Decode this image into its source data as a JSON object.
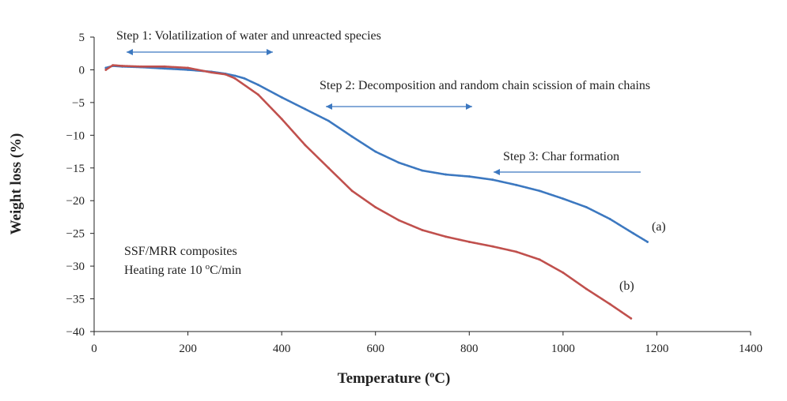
{
  "chart_data": {
    "type": "line",
    "title": "",
    "xlabel": "Temperature (",
    "xlabel_sup": "o",
    "xlabel_tail": "C)",
    "ylabel": "Weight loss (%)",
    "xlim": [
      0,
      1400
    ],
    "ylim": [
      -40,
      5
    ],
    "xticks": [
      "0",
      "200",
      "400",
      "600",
      "800",
      "1000",
      "1200",
      "1400"
    ],
    "yticks": [
      "5",
      "0",
      "−5",
      "−10",
      "−15",
      "−20",
      "−25",
      "−30",
      "−35",
      "−40"
    ],
    "xtick_values": [
      0,
      200,
      400,
      600,
      800,
      1000,
      1200,
      1400
    ],
    "ytick_values": [
      5,
      0,
      -5,
      -10,
      -15,
      -20,
      -25,
      -30,
      -35,
      -40
    ],
    "grid": false,
    "series": [
      {
        "name": "(a)",
        "color": "#3c78c0",
        "x": [
          25,
          40,
          60,
          100,
          150,
          200,
          250,
          280,
          300,
          320,
          350,
          400,
          450,
          500,
          550,
          600,
          650,
          700,
          750,
          800,
          850,
          900,
          950,
          1000,
          1050,
          1100,
          1150,
          1180
        ],
        "y": [
          0.3,
          0.6,
          0.5,
          0.4,
          0.2,
          0.0,
          -0.3,
          -0.6,
          -0.9,
          -1.3,
          -2.3,
          -4.2,
          -6.0,
          -7.8,
          -10.2,
          -12.5,
          -14.2,
          -15.4,
          -16.0,
          -16.3,
          -16.8,
          -17.6,
          -18.5,
          -19.7,
          -21.0,
          -22.8,
          -25.0,
          -26.3
        ]
      },
      {
        "name": "(b)",
        "color": "#c0504d",
        "x": [
          25,
          40,
          60,
          100,
          150,
          200,
          250,
          280,
          300,
          350,
          400,
          450,
          500,
          550,
          600,
          650,
          700,
          750,
          800,
          850,
          900,
          950,
          1000,
          1050,
          1100,
          1145
        ],
        "y": [
          0.0,
          0.7,
          0.6,
          0.5,
          0.5,
          0.3,
          -0.4,
          -0.7,
          -1.3,
          -3.8,
          -7.5,
          -11.5,
          -15.0,
          -18.5,
          -21.0,
          -23.0,
          -24.5,
          -25.5,
          -26.3,
          -27.0,
          -27.8,
          -29.0,
          -31.0,
          -33.5,
          -35.8,
          -38.0
        ]
      }
    ],
    "annotations": {
      "step1": "Step 1: Volatilization of water and unreacted species",
      "step2": "Step 2: Decomposition and random chain scission of main chains",
      "step3": "Step 3: Char formation",
      "label_a": "(a)",
      "label_b": "(b)",
      "note_line1": "SSF/MRR composites",
      "note_line2_prefix": "Heating rate 10 ",
      "note_line2_sup": "o",
      "note_line2_suffix": "C/min"
    },
    "arrow_color": "#3c78c0",
    "axis_color": "#222222"
  }
}
